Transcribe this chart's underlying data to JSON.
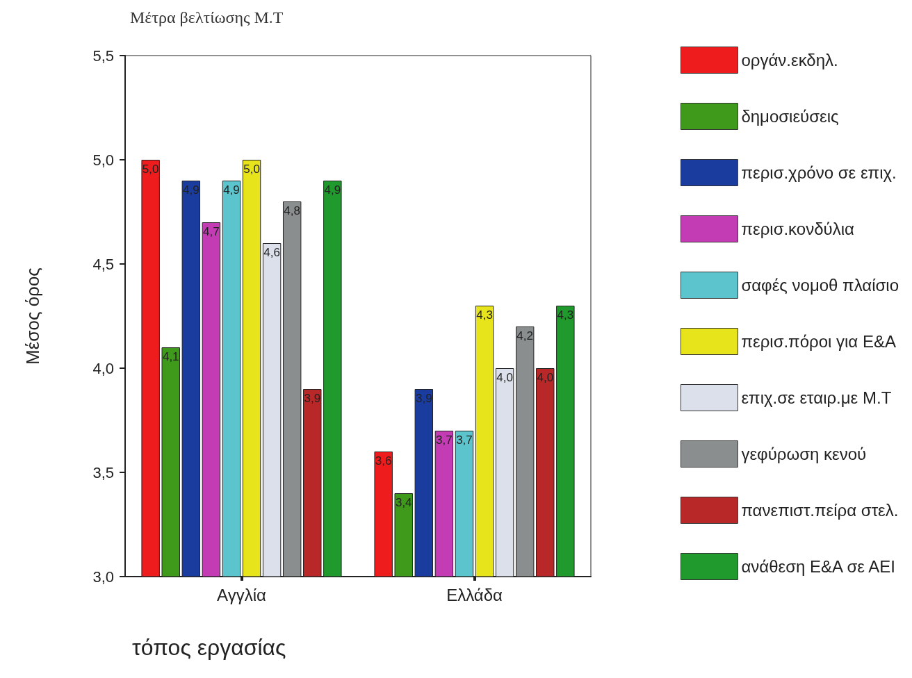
{
  "chart_data": {
    "type": "bar",
    "title": "Μέτρα βελτίωσης Μ.Τ",
    "xlabel": "τόπος εργασίας",
    "ylabel": "Μέσος όρος",
    "categories": [
      "Αγγλία",
      "Ελλάδα"
    ],
    "series": [
      {
        "name": "οργάν.εκδηλ.",
        "color": "#ee1c1c",
        "values": [
          5.0,
          3.6
        ],
        "value_labels": [
          "5,0",
          "3,6"
        ]
      },
      {
        "name": "δημοσιεύσεις",
        "color": "#3f9a1c",
        "values": [
          4.1,
          3.4
        ],
        "value_labels": [
          "4,1",
          "3,4"
        ]
      },
      {
        "name": "περισ.χρόνο σε επιχ.",
        "color": "#1a3c9e",
        "values": [
          4.9,
          3.9
        ],
        "value_labels": [
          "4,9",
          "3,9"
        ]
      },
      {
        "name": "περισ.κονδύλια",
        "color": "#c43cb4",
        "values": [
          4.7,
          3.7
        ],
        "value_labels": [
          "4,7",
          "3,7"
        ]
      },
      {
        "name": "σαφές νομοθ πλαίσιο",
        "color": "#5cc4cc",
        "values": [
          4.9,
          3.7
        ],
        "value_labels": [
          "4,9",
          "3,7"
        ]
      },
      {
        "name": "περισ.πόροι για Ε&Α",
        "color": "#e8e41c",
        "values": [
          5.0,
          4.3
        ],
        "value_labels": [
          "5,0",
          "4,3"
        ]
      },
      {
        "name": "επιχ.σε εταιρ.με Μ.Τ",
        "color": "#dce0ea",
        "values": [
          4.6,
          4.0
        ],
        "value_labels": [
          "4,6",
          "4,0"
        ]
      },
      {
        "name": "γεφύρωση κενού",
        "color": "#8a8e8e",
        "values": [
          4.8,
          4.2
        ],
        "value_labels": [
          "4,8",
          "4,2"
        ]
      },
      {
        "name": "πανεπιστ.πείρα στελ.",
        "color": "#b82828",
        "values": [
          3.9,
          4.0
        ],
        "value_labels": [
          "3,9",
          "4,0"
        ]
      },
      {
        "name": "ανάθεση Ε&Α σε ΑΕΙ",
        "color": "#209a2c",
        "values": [
          4.9,
          4.3
        ],
        "value_labels": [
          "4,9",
          "4,3"
        ]
      }
    ],
    "ylim": [
      3,
      5.5
    ],
    "yticks": [
      {
        "value": 3,
        "label": "3,0"
      },
      {
        "value": 3.5,
        "label": "3,5"
      },
      {
        "value": 4,
        "label": "4,0"
      },
      {
        "value": 4.5,
        "label": "4,5"
      },
      {
        "value": 5,
        "label": "5,0"
      },
      {
        "value": 5.5,
        "label": "5,5"
      }
    ],
    "grid": false,
    "legend": "right"
  }
}
